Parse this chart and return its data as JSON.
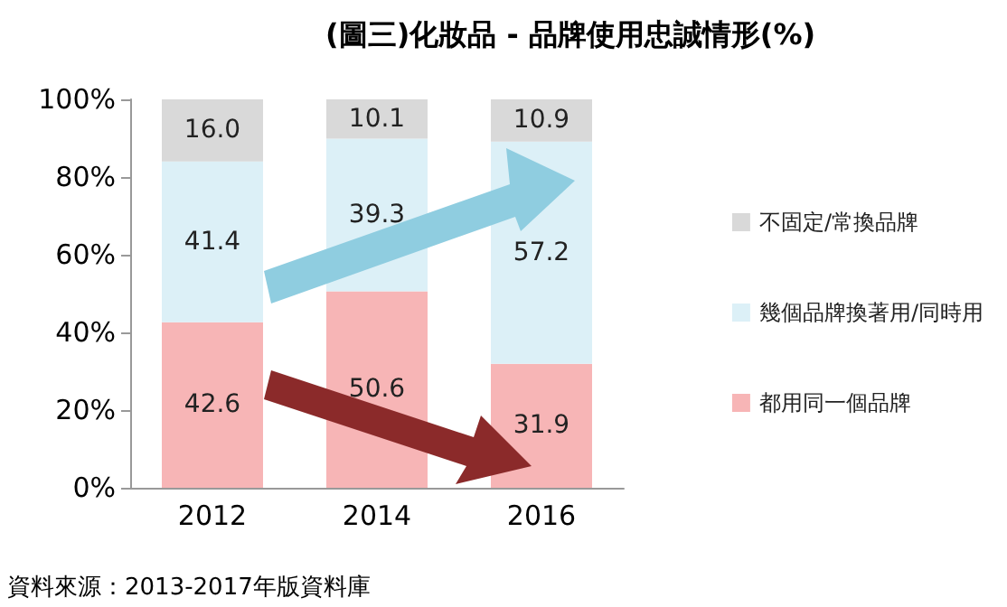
{
  "chart_data": {
    "type": "bar",
    "stacked": true,
    "title": "(圖三)化妝品 - 品牌使用忠誠情形(%)",
    "categories": [
      "2012",
      "2014",
      "2016"
    ],
    "series": [
      {
        "name": "都用同一個品牌",
        "color": "#f7b5b6",
        "values": [
          42.6,
          50.6,
          31.9
        ]
      },
      {
        "name": "幾個品牌換著用/同時用",
        "color": "#dcf0f7",
        "values": [
          41.4,
          39.3,
          57.2
        ]
      },
      {
        "name": "不固定/常換品牌",
        "color": "#d9d9d9",
        "values": [
          16.0,
          10.1,
          10.9
        ],
        "value_labels": [
          "16.0",
          "10.1",
          "10.9"
        ]
      }
    ],
    "ylim": [
      0,
      100
    ],
    "yticks": [
      {
        "value": 0,
        "label": "0%"
      },
      {
        "value": 20,
        "label": "20%"
      },
      {
        "value": 40,
        "label": "40%"
      },
      {
        "value": 60,
        "label": "60%"
      },
      {
        "value": 80,
        "label": "80%"
      },
      {
        "value": 100,
        "label": "100%"
      }
    ],
    "grid": false,
    "legend": "right",
    "data_labels": true,
    "annotations": [
      "資料來源：2013-2017年版資料庫"
    ]
  }
}
